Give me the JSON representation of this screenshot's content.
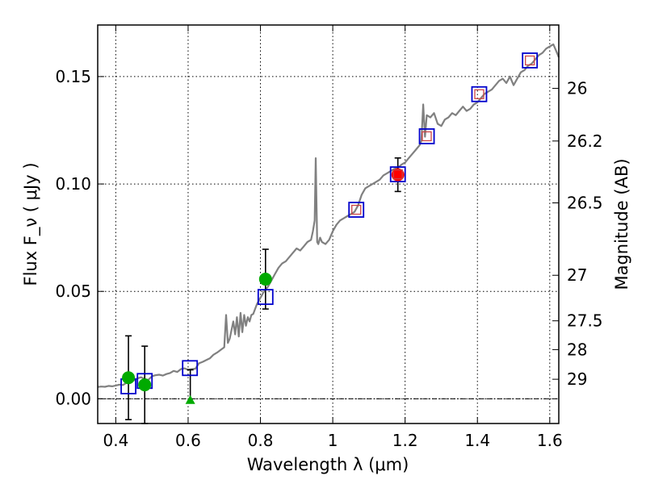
{
  "chart_data": {
    "type": "scatter",
    "xlabel": "Wavelength  λ (μm)",
    "ylabel": "Flux  F_ν  ( μJy )",
    "ylabel_right": "Magnitude (AB)",
    "xlim": [
      0.35,
      1.625
    ],
    "ylim": [
      -0.0115,
      0.174
    ],
    "x_ticks": [
      0.4,
      0.6,
      0.8,
      1.0,
      1.2,
      1.4,
      1.6
    ],
    "x_tick_labels": [
      "0.4",
      "0.6",
      "0.8",
      "1",
      "1.2",
      "1.4",
      "1.6"
    ],
    "y_ticks": [
      0.0,
      0.05,
      0.1,
      0.15
    ],
    "y_tick_labels": [
      "0.00",
      "0.05",
      "0.10",
      "0.15"
    ],
    "right_ticks": [
      {
        "label": "26",
        "flux": 0.1445
      },
      {
        "label": "26.2",
        "flux": 0.12
      },
      {
        "label": "26.5",
        "flux": 0.0912
      },
      {
        "label": "27",
        "flux": 0.0575
      },
      {
        "label": "27.5",
        "flux": 0.0363
      },
      {
        "label": "28",
        "flux": 0.0229
      },
      {
        "label": "29",
        "flux": 0.0091
      }
    ],
    "grid": true,
    "zero_line": 0.0,
    "series": [
      {
        "name": "model spectrum",
        "kind": "line",
        "color": "#808080",
        "x": [
          0.35,
          0.36,
          0.37,
          0.38,
          0.39,
          0.4,
          0.41,
          0.42,
          0.43,
          0.44,
          0.45,
          0.46,
          0.47,
          0.48,
          0.49,
          0.5,
          0.51,
          0.52,
          0.53,
          0.54,
          0.55,
          0.56,
          0.57,
          0.58,
          0.59,
          0.6,
          0.61,
          0.62,
          0.63,
          0.64,
          0.65,
          0.66,
          0.67,
          0.68,
          0.69,
          0.7,
          0.705,
          0.71,
          0.715,
          0.72,
          0.725,
          0.73,
          0.735,
          0.74,
          0.745,
          0.75,
          0.755,
          0.76,
          0.765,
          0.77,
          0.775,
          0.78,
          0.79,
          0.8,
          0.81,
          0.82,
          0.83,
          0.84,
          0.85,
          0.86,
          0.87,
          0.88,
          0.89,
          0.9,
          0.91,
          0.92,
          0.93,
          0.94,
          0.945,
          0.95,
          0.953,
          0.955,
          0.957,
          0.96,
          0.965,
          0.97,
          0.98,
          0.99,
          1.0,
          1.01,
          1.02,
          1.03,
          1.04,
          1.05,
          1.06,
          1.07,
          1.08,
          1.09,
          1.1,
          1.11,
          1.12,
          1.13,
          1.14,
          1.15,
          1.16,
          1.17,
          1.18,
          1.19,
          1.2,
          1.21,
          1.22,
          1.23,
          1.24,
          1.245,
          1.25,
          1.255,
          1.26,
          1.27,
          1.28,
          1.29,
          1.3,
          1.31,
          1.32,
          1.33,
          1.34,
          1.35,
          1.36,
          1.37,
          1.38,
          1.39,
          1.4,
          1.41,
          1.42,
          1.43,
          1.44,
          1.45,
          1.46,
          1.47,
          1.48,
          1.49,
          1.5,
          1.51,
          1.52,
          1.53,
          1.54,
          1.55,
          1.56,
          1.57,
          1.58,
          1.59,
          1.6,
          1.61,
          1.62,
          1.625
        ],
        "y": [
          0.0055,
          0.0057,
          0.0056,
          0.006,
          0.0058,
          0.0062,
          0.0066,
          0.0064,
          0.0075,
          0.009,
          0.0085,
          0.0095,
          0.01,
          0.0092,
          0.0088,
          0.0105,
          0.011,
          0.0112,
          0.0108,
          0.0115,
          0.012,
          0.013,
          0.0125,
          0.0138,
          0.0142,
          0.0135,
          0.0138,
          0.014,
          0.0165,
          0.0172,
          0.018,
          0.0188,
          0.0205,
          0.0215,
          0.0228,
          0.024,
          0.039,
          0.026,
          0.028,
          0.032,
          0.036,
          0.03,
          0.038,
          0.029,
          0.04,
          0.031,
          0.039,
          0.034,
          0.038,
          0.036,
          0.039,
          0.0395,
          0.044,
          0.047,
          0.05,
          0.052,
          0.055,
          0.058,
          0.061,
          0.063,
          0.064,
          0.066,
          0.068,
          0.07,
          0.069,
          0.071,
          0.073,
          0.074,
          0.078,
          0.083,
          0.112,
          0.092,
          0.073,
          0.072,
          0.075,
          0.073,
          0.072,
          0.074,
          0.078,
          0.081,
          0.083,
          0.084,
          0.085,
          0.086,
          0.087,
          0.09,
          0.095,
          0.098,
          0.099,
          0.1,
          0.101,
          0.102,
          0.104,
          0.105,
          0.106,
          0.107,
          0.1075,
          0.109,
          0.11,
          0.112,
          0.114,
          0.116,
          0.118,
          0.12,
          0.137,
          0.122,
          0.132,
          0.131,
          0.133,
          0.128,
          0.127,
          0.13,
          0.131,
          0.133,
          0.132,
          0.134,
          0.136,
          0.134,
          0.135,
          0.137,
          0.138,
          0.14,
          0.142,
          0.143,
          0.144,
          0.146,
          0.148,
          0.149,
          0.147,
          0.15,
          0.146,
          0.149,
          0.152,
          0.153,
          0.155,
          0.156,
          0.158,
          0.16,
          0.161,
          0.163,
          0.164,
          0.165,
          0.161,
          0.159
        ]
      },
      {
        "name": "model photometry",
        "kind": "open-square",
        "color": "#0000cc",
        "x": [
          0.435,
          0.48,
          0.605,
          0.814,
          1.065,
          1.18,
          1.26,
          1.405,
          1.545
        ],
        "y": [
          0.0058,
          0.0083,
          0.0143,
          0.0474,
          0.088,
          0.1045,
          0.1222,
          0.1418,
          0.1575
        ]
      },
      {
        "name": "observed (optical)",
        "kind": "filled-circle",
        "color": "#00aa00",
        "x": [
          0.435,
          0.48,
          0.814
        ],
        "y": [
          0.0098,
          0.0065,
          0.0557
        ],
        "err": [
          0.0195,
          0.018,
          0.0139
        ]
      },
      {
        "name": "upper limit",
        "kind": "filled-triangle",
        "color": "#00aa00",
        "x": [
          0.606
        ],
        "y": [
          -0.0005
        ],
        "err_up": [
          0.014
        ]
      },
      {
        "name": "observed (near-IR)",
        "kind": "filled-circle",
        "color": "#ff0000",
        "x": [
          1.18
        ],
        "y": [
          0.1043
        ],
        "err": [
          0.0078
        ]
      },
      {
        "name": "near-IR photometry",
        "kind": "small-square",
        "color": "#cc4444",
        "x": [
          1.065,
          1.18,
          1.26,
          1.405,
          1.545
        ],
        "y": [
          0.088,
          0.1045,
          0.1222,
          0.1418,
          0.1575
        ]
      }
    ]
  }
}
